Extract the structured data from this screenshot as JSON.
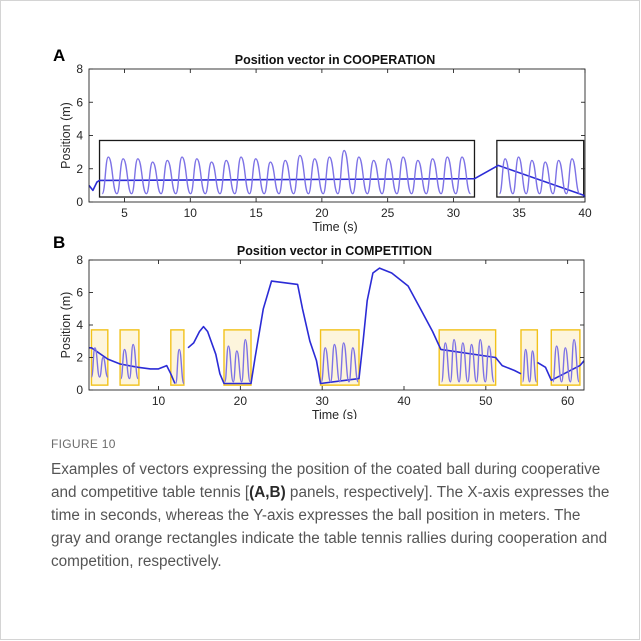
{
  "figure_label": "FIGURE 10",
  "caption": {
    "before": "Examples of vectors expressing the position of the coated ball during cooperative and competitive table tennis [",
    "bold": "(A,B)",
    "after": " panels, respectively]. The X-axis expresses the time in seconds, whereas the Y-axis expresses the ball position in meters. The gray and orange rectangles indicate the table tennis rallies during cooperation and competition, respectively."
  },
  "colors": {
    "line": "#2b2bd6",
    "rally_line": "#7d72e6",
    "gray_box": "#1a1a1a",
    "orange_box": "#f2c21a",
    "orange_fill": "#fdf5dc"
  },
  "chart_data": [
    {
      "panel_letter": "A",
      "type": "line",
      "title": "Position vector in COOPERATION",
      "xlabel": "Time (s)",
      "ylabel": "Position (m)",
      "xlim": [
        2.3,
        40
      ],
      "ylim": [
        0,
        8
      ],
      "xticks": [
        5,
        10,
        15,
        20,
        25,
        30,
        35,
        40
      ],
      "yticks": [
        0,
        2,
        4,
        6,
        8
      ],
      "box_style": "gray",
      "segments": [
        [
          2.3,
          1.0
        ],
        [
          2.6,
          0.7
        ],
        [
          2.9,
          1.2
        ],
        [
          3.1,
          1.3
        ],
        [
          31.6,
          1.4
        ],
        [
          33.4,
          2.2
        ],
        [
          39.9,
          0.4
        ],
        [
          40,
          0.3
        ]
      ],
      "rallies": [
        {
          "x0": 3.1,
          "x1": 31.6,
          "y0": 0.3,
          "y1": 3.7,
          "osc_start": 3.3,
          "osc_end": 31.3,
          "peaks": 25,
          "low": 0.5,
          "amps": [
            2.7,
            2.6,
            2.6,
            2.4,
            2.5,
            2.7,
            2.6,
            2.4,
            2.5,
            2.7,
            2.6,
            2.4,
            2.5,
            2.8,
            2.6,
            2.7,
            3.1,
            2.7,
            2.5,
            2.6,
            2.7,
            2.5,
            2.6,
            2.7,
            2.7
          ]
        },
        {
          "x0": 33.3,
          "x1": 39.9,
          "y0": 0.3,
          "y1": 3.7,
          "osc_start": 33.5,
          "osc_end": 39.6,
          "peaks": 6,
          "low": 0.5,
          "amps": [
            2.6,
            2.7,
            2.5,
            2.4,
            2.5,
            2.6
          ]
        }
      ]
    },
    {
      "panel_letter": "B",
      "type": "line",
      "title": "Position vector in COMPETITION",
      "xlabel": "Time (s)",
      "ylabel": "Position (m)",
      "xlim": [
        1.5,
        62
      ],
      "ylim": [
        0,
        8
      ],
      "xticks": [
        10,
        20,
        30,
        40,
        50,
        60
      ],
      "yticks": [
        0,
        2,
        4,
        6,
        8
      ],
      "box_style": "orange",
      "segments": [
        [
          1.5,
          2.6
        ],
        [
          1.8,
          2.6
        ],
        [
          3.8,
          1.9
        ],
        [
          5.3,
          1.6
        ],
        [
          7.5,
          1.4
        ],
        [
          9.0,
          1.3
        ],
        [
          10.0,
          1.3
        ],
        [
          11.0,
          1.5
        ],
        [
          11.5,
          1.0
        ],
        [
          12.0,
          0.4
        ],
        [
          12.2,
          0.3
        ],
        [
          13.6,
          2.6
        ],
        [
          14.3,
          2.9
        ],
        [
          15.0,
          3.6
        ],
        [
          15.5,
          3.9
        ],
        [
          16.0,
          3.6
        ],
        [
          17.0,
          2.2
        ],
        [
          17.5,
          1.0
        ],
        [
          18.0,
          0.4
        ],
        [
          21.3,
          0.4
        ],
        [
          21.8,
          2.0
        ],
        [
          22.8,
          5.0
        ],
        [
          23.8,
          6.7
        ],
        [
          27.0,
          6.5
        ],
        [
          27.6,
          5.0
        ],
        [
          28.5,
          3.0
        ],
        [
          29.3,
          1.8
        ],
        [
          29.8,
          0.4
        ],
        [
          34.5,
          0.7
        ],
        [
          35.0,
          3.0
        ],
        [
          35.5,
          5.5
        ],
        [
          36.2,
          7.2
        ],
        [
          37.0,
          7.5
        ],
        [
          38.5,
          7.2
        ],
        [
          40.5,
          6.4
        ],
        [
          42.0,
          5.0
        ],
        [
          43.5,
          3.6
        ],
        [
          44.5,
          2.5
        ],
        [
          51.2,
          2.0
        ],
        [
          52.0,
          1.5
        ],
        [
          53.5,
          1.2
        ],
        [
          54.3,
          1.0
        ],
        [
          55.5,
          2.3
        ],
        [
          56.3,
          1.7
        ],
        [
          57.3,
          1.4
        ],
        [
          58.0,
          0.6
        ],
        [
          61.5,
          1.5
        ],
        [
          62,
          1.8
        ]
      ],
      "rallies": [
        {
          "x0": 1.8,
          "x1": 3.8,
          "y0": 0.3,
          "y1": 3.7,
          "osc_start": 1.8,
          "osc_end": 3.8,
          "peaks": 2,
          "low": 0.8,
          "amps": [
            2.6,
            2.0
          ]
        },
        {
          "x0": 5.3,
          "x1": 7.6,
          "y0": 0.3,
          "y1": 3.7,
          "osc_start": 5.4,
          "osc_end": 7.5,
          "peaks": 2,
          "low": 0.7,
          "amps": [
            2.5,
            2.8
          ]
        },
        {
          "x0": 11.5,
          "x1": 13.1,
          "y0": 0.3,
          "y1": 3.7,
          "osc_start": 12.1,
          "osc_end": 13.1,
          "peaks": 1,
          "low": 0.4,
          "amps": [
            2.5
          ]
        },
        {
          "x0": 18.0,
          "x1": 21.3,
          "y0": 0.3,
          "y1": 3.7,
          "osc_start": 18.1,
          "osc_end": 21.2,
          "peaks": 3,
          "low": 0.5,
          "amps": [
            2.7,
            2.4,
            3.1
          ]
        },
        {
          "x0": 29.8,
          "x1": 34.5,
          "y0": 0.3,
          "y1": 3.7,
          "osc_start": 29.9,
          "osc_end": 34.4,
          "peaks": 4,
          "low": 0.5,
          "amps": [
            2.6,
            2.8,
            2.9,
            2.6
          ]
        },
        {
          "x0": 44.3,
          "x1": 51.2,
          "y0": 0.3,
          "y1": 3.7,
          "osc_start": 44.6,
          "osc_end": 51.0,
          "peaks": 6,
          "low": 0.5,
          "amps": [
            2.9,
            3.1,
            2.9,
            2.8,
            3.1,
            2.7
          ]
        },
        {
          "x0": 54.3,
          "x1": 56.3,
          "y0": 0.3,
          "y1": 3.7,
          "osc_start": 54.5,
          "osc_end": 56.2,
          "peaks": 2,
          "low": 0.5,
          "amps": [
            2.5,
            2.4
          ]
        },
        {
          "x0": 58.0,
          "x1": 61.5,
          "y0": 0.3,
          "y1": 3.7,
          "osc_start": 58.2,
          "osc_end": 61.4,
          "peaks": 3,
          "low": 0.5,
          "amps": [
            2.7,
            2.6,
            3.1
          ]
        }
      ]
    }
  ]
}
